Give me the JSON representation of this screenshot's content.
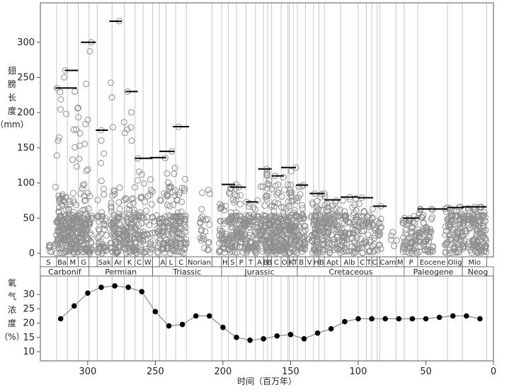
{
  "chart_data": [
    {
      "type": "scatter",
      "ylabel_chars": [
        "翅",
        "膀",
        "长",
        "度",
        "（mm）"
      ],
      "ylim": [
        0,
        340
      ],
      "xlim": [
        335,
        0
      ],
      "yticks": [
        0,
        50,
        100,
        150,
        200,
        250,
        300
      ],
      "max_segments": [
        {
          "x0": 324,
          "x1": 308,
          "y": 235
        },
        {
          "x0": 317,
          "x1": 307,
          "y": 260
        },
        {
          "x0": 305,
          "x1": 294,
          "y": 300
        },
        {
          "x0": 294,
          "x1": 285,
          "y": 175
        },
        {
          "x0": 284,
          "x1": 275,
          "y": 330
        },
        {
          "x0": 272,
          "x1": 263,
          "y": 230
        },
        {
          "x0": 265,
          "x1": 252,
          "y": 135
        },
        {
          "x0": 254,
          "x1": 242,
          "y": 136
        },
        {
          "x0": 247,
          "x1": 236,
          "y": 145
        },
        {
          "x0": 237,
          "x1": 225,
          "y": 180
        },
        {
          "x0": 201,
          "x1": 191,
          "y": 98
        },
        {
          "x0": 195,
          "x1": 183,
          "y": 94
        },
        {
          "x0": 183,
          "x1": 174,
          "y": 73
        },
        {
          "x0": 174,
          "x1": 164,
          "y": 120
        },
        {
          "x0": 164,
          "x1": 155,
          "y": 110
        },
        {
          "x0": 157,
          "x1": 146,
          "y": 122
        },
        {
          "x0": 146,
          "x1": 137,
          "y": 97
        },
        {
          "x0": 136,
          "x1": 125,
          "y": 85
        },
        {
          "x0": 125,
          "x1": 113,
          "y": 76
        },
        {
          "x0": 113,
          "x1": 100,
          "y": 80
        },
        {
          "x0": 100,
          "x1": 89,
          "y": 79
        },
        {
          "x0": 89,
          "x1": 79,
          "y": 67
        },
        {
          "x0": 67,
          "x1": 55,
          "y": 50
        },
        {
          "x0": 56,
          "x1": 34,
          "y": 63
        },
        {
          "x0": 34,
          "x1": 22,
          "y": 65
        },
        {
          "x0": 23,
          "x1": 5,
          "y": 66
        }
      ],
      "point_groups": [
        {
          "x0": 330,
          "x1": 325,
          "ymax": 12,
          "n": 6
        },
        {
          "x0": 324,
          "x1": 318,
          "ymax": 235,
          "n": 70
        },
        {
          "x0": 318,
          "x1": 311,
          "ymax": 260,
          "n": 90
        },
        {
          "x0": 311,
          "x1": 304,
          "ymax": 230,
          "n": 90
        },
        {
          "x0": 304,
          "x1": 297,
          "ymax": 300,
          "n": 80
        },
        {
          "x0": 293,
          "x1": 286,
          "ymax": 175,
          "n": 50
        },
        {
          "x0": 283,
          "x1": 276,
          "ymax": 330,
          "n": 80
        },
        {
          "x0": 274,
          "x1": 265,
          "ymax": 230,
          "n": 90
        },
        {
          "x0": 265,
          "x1": 258,
          "ymax": 135,
          "n": 50
        },
        {
          "x0": 258,
          "x1": 250,
          "ymax": 105,
          "n": 30
        },
        {
          "x0": 249,
          "x1": 243,
          "ymax": 85,
          "n": 40
        },
        {
          "x0": 243,
          "x1": 236,
          "ymax": 145,
          "n": 60
        },
        {
          "x0": 236,
          "x1": 227,
          "ymax": 180,
          "n": 80
        },
        {
          "x0": 217,
          "x1": 209,
          "ymax": 90,
          "n": 25
        },
        {
          "x0": 203,
          "x1": 196,
          "ymax": 70,
          "n": 40
        },
        {
          "x0": 196,
          "x1": 190,
          "ymax": 98,
          "n": 60
        },
        {
          "x0": 190,
          "x1": 183,
          "ymax": 94,
          "n": 60
        },
        {
          "x0": 183,
          "x1": 176,
          "ymax": 73,
          "n": 50
        },
        {
          "x0": 176,
          "x1": 170,
          "ymax": 95,
          "n": 40
        },
        {
          "x0": 170,
          "x1": 164,
          "ymax": 120,
          "n": 70
        },
        {
          "x0": 164,
          "x1": 158,
          "ymax": 110,
          "n": 70
        },
        {
          "x0": 158,
          "x1": 152,
          "ymax": 108,
          "n": 70
        },
        {
          "x0": 152,
          "x1": 146,
          "ymax": 122,
          "n": 70
        },
        {
          "x0": 146,
          "x1": 139,
          "ymax": 97,
          "n": 60
        },
        {
          "x0": 135,
          "x1": 129,
          "ymax": 85,
          "n": 60
        },
        {
          "x0": 129,
          "x1": 122,
          "ymax": 85,
          "n": 60
        },
        {
          "x0": 122,
          "x1": 115,
          "ymax": 75,
          "n": 50
        },
        {
          "x0": 114,
          "x1": 106,
          "ymax": 80,
          "n": 50
        },
        {
          "x0": 106,
          "x1": 99,
          "ymax": 78,
          "n": 40
        },
        {
          "x0": 98,
          "x1": 91,
          "ymax": 79,
          "n": 40
        },
        {
          "x0": 90,
          "x1": 83,
          "ymax": 67,
          "n": 30
        },
        {
          "x0": 77,
          "x1": 70,
          "ymax": 30,
          "n": 5
        },
        {
          "x0": 67,
          "x1": 60,
          "ymax": 50,
          "n": 40
        },
        {
          "x0": 60,
          "x1": 52,
          "ymax": 63,
          "n": 40
        },
        {
          "x0": 52,
          "x1": 44,
          "ymax": 63,
          "n": 40
        },
        {
          "x0": 36,
          "x1": 28,
          "ymax": 65,
          "n": 50
        },
        {
          "x0": 28,
          "x1": 20,
          "ymax": 66,
          "n": 60
        },
        {
          "x0": 19,
          "x1": 12,
          "ymax": 66,
          "n": 60
        },
        {
          "x0": 12,
          "x1": 5,
          "ymax": 66,
          "n": 60
        }
      ]
    },
    {
      "type": "line",
      "ylabel_chars": [
        "氧",
        "气",
        "浓",
        "度",
        "（%）"
      ],
      "xlabel": "时间（百万年）",
      "ylim": [
        10,
        35
      ],
      "xlim": [
        335,
        0
      ],
      "yticks": [
        10,
        15,
        20,
        25,
        30
      ],
      "xticks": [
        300,
        250,
        200,
        150,
        100,
        50,
        0
      ],
      "x": [
        320,
        310,
        300,
        290,
        280,
        270,
        260,
        250,
        240,
        230,
        220,
        210,
        200,
        190,
        180,
        170,
        160,
        150,
        140,
        130,
        120,
        110,
        100,
        90,
        80,
        70,
        60,
        50,
        40,
        30,
        20,
        10
      ],
      "y": [
        21.5,
        26,
        30.5,
        32.5,
        33,
        32.5,
        31,
        24,
        19,
        19.5,
        22.5,
        22.5,
        18.5,
        15,
        14,
        14.5,
        15.5,
        16,
        14.5,
        16.5,
        18,
        20.5,
        21.5,
        21.5,
        21.5,
        21.5,
        21.5,
        21.5,
        22,
        22.5,
        22.5,
        21.5
      ]
    }
  ],
  "stage_bands": [
    {
      "x0": 335,
      "x1": 323,
      "label": "S"
    },
    {
      "x0": 323,
      "x1": 315,
      "label": "Ba"
    },
    {
      "x0": 315,
      "x1": 307,
      "label": "M"
    },
    {
      "x0": 307,
      "x1": 299,
      "label": "G"
    },
    {
      "x0": 299,
      "x1": 293,
      "label": ""
    },
    {
      "x0": 293,
      "x1": 282,
      "label": "Sak"
    },
    {
      "x0": 282,
      "x1": 273,
      "label": "Ar"
    },
    {
      "x0": 273,
      "x1": 265,
      "label": "K"
    },
    {
      "x0": 265,
      "x1": 259,
      "label": "C"
    },
    {
      "x0": 259,
      "x1": 252,
      "label": "W"
    },
    {
      "x0": 252,
      "x1": 247,
      "label": ""
    },
    {
      "x0": 247,
      "x1": 242,
      "label": "A"
    },
    {
      "x0": 242,
      "x1": 235,
      "label": "L"
    },
    {
      "x0": 235,
      "x1": 227,
      "label": "C"
    },
    {
      "x0": 227,
      "x1": 208,
      "label": "Norian"
    },
    {
      "x0": 208,
      "x1": 201,
      "label": ""
    },
    {
      "x0": 201,
      "x1": 196,
      "label": "H"
    },
    {
      "x0": 196,
      "x1": 190,
      "label": "S"
    },
    {
      "x0": 190,
      "x1": 183,
      "label": "P"
    },
    {
      "x0": 183,
      "x1": 176,
      "label": "T"
    },
    {
      "x0": 176,
      "x1": 170,
      "label": "A"
    },
    {
      "x0": 170,
      "x1": 167,
      "label": "B"
    },
    {
      "x0": 167,
      "x1": 164,
      "label": "B"
    },
    {
      "x0": 164,
      "x1": 157,
      "label": "C"
    },
    {
      "x0": 157,
      "x1": 152,
      "label": "O"
    },
    {
      "x0": 152,
      "x1": 151,
      "label": ""
    },
    {
      "x0": 151,
      "x1": 148,
      "label": "K"
    },
    {
      "x0": 148,
      "x1": 145,
      "label": "T"
    },
    {
      "x0": 145,
      "x1": 139,
      "label": "B"
    },
    {
      "x0": 139,
      "x1": 133,
      "label": "V"
    },
    {
      "x0": 133,
      "x1": 129,
      "label": "H"
    },
    {
      "x0": 129,
      "x1": 125,
      "label": "B"
    },
    {
      "x0": 125,
      "x1": 113,
      "label": "Apt"
    },
    {
      "x0": 113,
      "x1": 100,
      "label": "Alb"
    },
    {
      "x0": 100,
      "x1": 94,
      "label": "C"
    },
    {
      "x0": 94,
      "x1": 90,
      "label": "T"
    },
    {
      "x0": 90,
      "x1": 86,
      "label": "C"
    },
    {
      "x0": 86,
      "x1": 84,
      "label": ""
    },
    {
      "x0": 84,
      "x1": 72,
      "label": "Cam"
    },
    {
      "x0": 72,
      "x1": 66,
      "label": "M"
    },
    {
      "x0": 66,
      "x1": 56,
      "label": "P"
    },
    {
      "x0": 56,
      "x1": 34,
      "label": "Eocene"
    },
    {
      "x0": 34,
      "x1": 23,
      "label": "Olig"
    },
    {
      "x0": 23,
      "x1": 5,
      "label": "Mio"
    }
  ],
  "era_bands": [
    {
      "x0": 335,
      "x1": 299,
      "label": "Carbonif"
    },
    {
      "x0": 299,
      "x1": 252,
      "label": "Permian"
    },
    {
      "x0": 252,
      "x1": 201,
      "label": "Triassic"
    },
    {
      "x0": 201,
      "x1": 145,
      "label": "Jurassic"
    },
    {
      "x0": 145,
      "x1": 66,
      "label": "Cretaceous"
    },
    {
      "x0": 66,
      "x1": 23,
      "label": "Paleogene"
    },
    {
      "x0": 23,
      "x1": 0,
      "label": "Neog"
    }
  ],
  "colors": {
    "points": "#8e8e8e",
    "max_line": "#000000",
    "grid": "#c8c8c8",
    "axis": "#555555",
    "o2_line": "#888888",
    "o2_marker": "#000000"
  }
}
